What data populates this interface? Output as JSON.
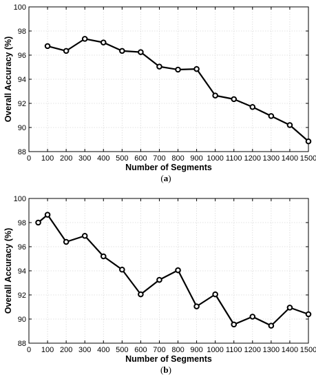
{
  "chart_data": [
    {
      "type": "line",
      "panel": "a",
      "caption": "(a)",
      "xlabel": "Number of Segments",
      "ylabel": "Overall Accuracy (%)",
      "xlim": [
        0,
        1500
      ],
      "ylim": [
        88,
        100
      ],
      "xticks": [
        0,
        100,
        200,
        300,
        400,
        500,
        600,
        700,
        800,
        900,
        1000,
        1100,
        1200,
        1300,
        1400,
        1500
      ],
      "yticks": [
        88,
        90,
        92,
        94,
        96,
        98,
        100
      ],
      "grid": true,
      "series": [
        {
          "x": [
            100,
            200,
            300,
            400,
            500,
            600,
            700,
            800,
            900,
            1000,
            1100,
            1200,
            1300,
            1400,
            1500
          ],
          "values": [
            96.75,
            96.35,
            97.35,
            97.05,
            96.35,
            96.25,
            95.05,
            94.8,
            94.85,
            92.65,
            92.35,
            91.7,
            90.95,
            90.2,
            88.85
          ]
        }
      ],
      "marker": "circle",
      "color": "#000000"
    },
    {
      "type": "line",
      "panel": "b",
      "caption": "(b)",
      "xlabel": "Number of Segments",
      "ylabel": "Overall Accuracy (%)",
      "xlim": [
        0,
        1500
      ],
      "ylim": [
        88,
        100
      ],
      "xticks": [
        0,
        100,
        200,
        300,
        400,
        500,
        600,
        700,
        800,
        900,
        1000,
        1100,
        1200,
        1300,
        1400,
        1500
      ],
      "yticks": [
        88,
        90,
        92,
        94,
        96,
        98,
        100
      ],
      "grid": true,
      "series": [
        {
          "x": [
            50,
            100,
            200,
            300,
            400,
            500,
            600,
            700,
            800,
            900,
            1000,
            1100,
            1200,
            1300,
            1400,
            1500
          ],
          "values": [
            98.0,
            98.65,
            96.4,
            96.9,
            95.2,
            94.1,
            92.05,
            93.25,
            94.05,
            91.05,
            92.05,
            89.55,
            90.2,
            89.45,
            90.95,
            90.4
          ]
        }
      ],
      "marker": "circle",
      "color": "#000000"
    }
  ]
}
